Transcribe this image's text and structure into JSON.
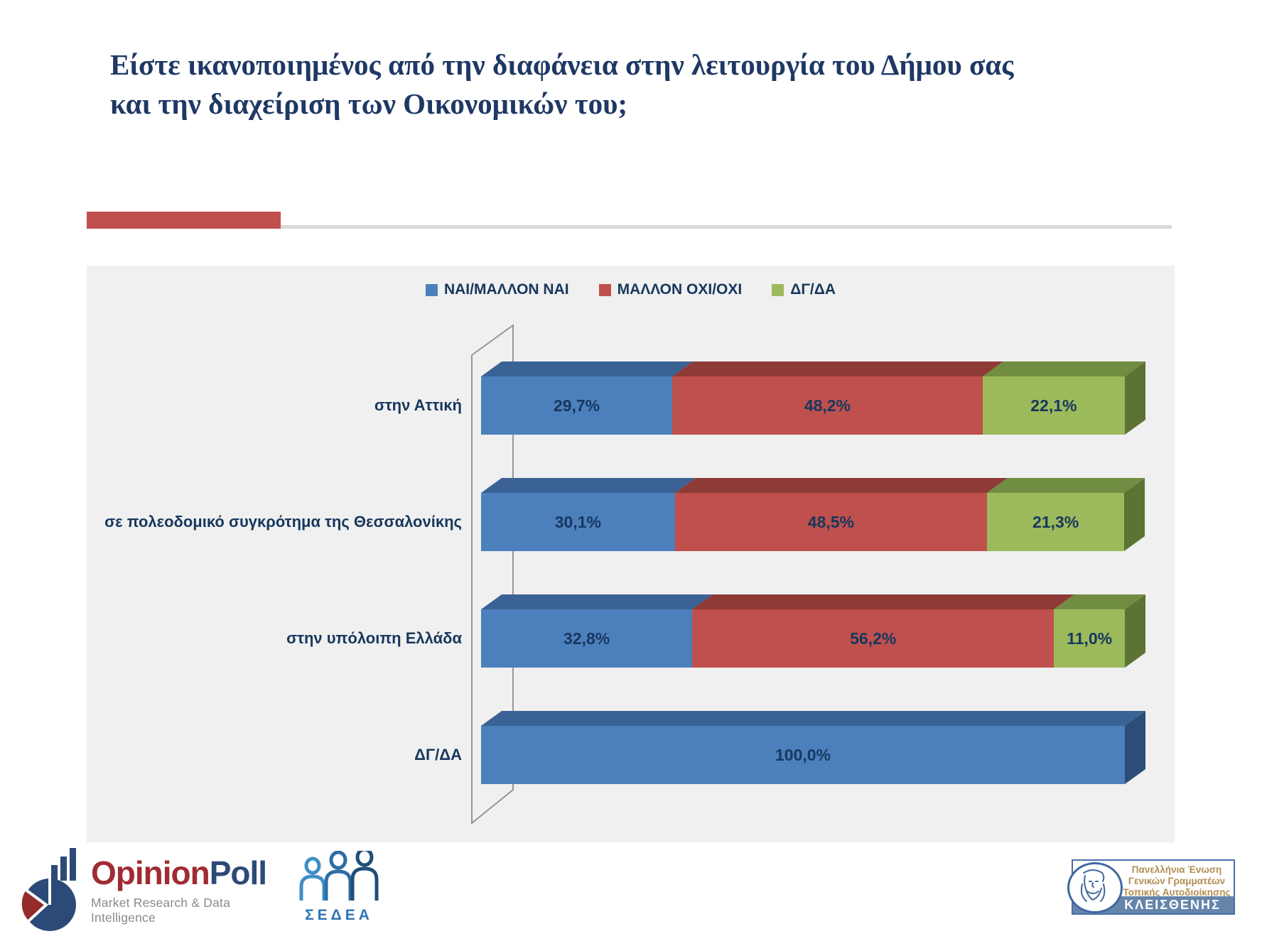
{
  "slide": {
    "title": "Είστε ικανοποιημένος από την διαφάνεια στην λειτουργία του Δήμου σας και την διαχείριση των Οικονομικών του;"
  },
  "colors": {
    "accent_red": "#C0504D",
    "divider_gray": "#D9D9D9",
    "plot_background": "#F0F0F0",
    "text_navy": "#17375E",
    "title_navy": "#1F3864"
  },
  "chart_data": {
    "type": "bar",
    "orientation": "horizontal",
    "stacked": true,
    "style": "3d",
    "grid": false,
    "legend_position": "top",
    "xlim": [
      0,
      100
    ],
    "categories": [
      "στην Αττική",
      "σε πολεοδομικό συγκρότημα της Θεσσαλονίκης",
      "στην υπόλοιπη Ελλάδα",
      "ΔΓ/ΔΑ"
    ],
    "series": [
      {
        "name": "ΝΑΙ/ΜΑΛΛΟΝ ΝΑΙ",
        "color": "#4C80BD",
        "color_top": "#3A6294",
        "color_side": "#2C4D77",
        "values": [
          29.7,
          30.1,
          32.8,
          100.0
        ]
      },
      {
        "name": "ΜΑΛΛΟΝ ΟΧΙ/ΟΧΙ",
        "color": "#C0504D",
        "color_top": "#8E3A37",
        "color_side": "#7A302E",
        "values": [
          48.2,
          48.5,
          56.2,
          0
        ]
      },
      {
        "name": "ΔΓ/ΔΑ",
        "color": "#9CBA5B",
        "color_top": "#718D41",
        "color_side": "#5C7334",
        "values": [
          22.1,
          21.3,
          11.0,
          0
        ]
      }
    ],
    "data_labels": [
      [
        "29,7%",
        "48,2%",
        "22,1%"
      ],
      [
        "30,1%",
        "48,5%",
        "21,3%"
      ],
      [
        "32,8%",
        "56,2%",
        "11,0%"
      ],
      [
        "100,0%",
        "",
        ""
      ]
    ]
  },
  "footer": {
    "opinionpoll": {
      "name_part1": "Opinion",
      "name_part2": "Poll",
      "tagline": "Market Research & Data Intelligence"
    },
    "sedea": {
      "label": "ΣΕΔΕΑ"
    },
    "kleisthenis": {
      "line1": "Πανελλήνια Ένωση",
      "line2": "Γενικών Γραμματέων",
      "line3": "Τοπικής Αυτοδιοίκησης",
      "name": "ΚΛΕΙΣΘΕΝΗΣ"
    }
  }
}
